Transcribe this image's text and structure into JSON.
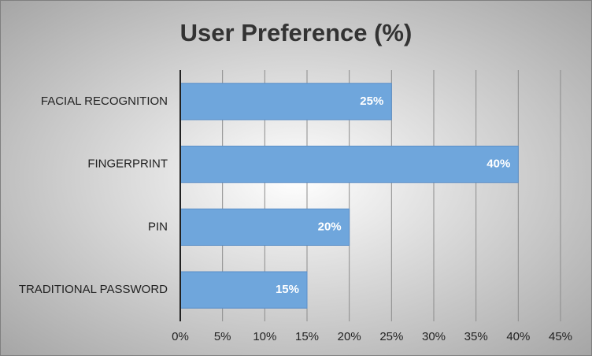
{
  "chart_data": {
    "type": "hbar",
    "title": "User Preference (%)",
    "categories": [
      "FACIAL RECOGNITION",
      "FINGERPRINT",
      "PIN",
      "TRADITIONAL PASSWORD"
    ],
    "values": [
      25,
      40,
      20,
      15
    ],
    "value_labels": [
      "25%",
      "40%",
      "20%",
      "15%"
    ],
    "color": "#6fa6dc",
    "xlim": [
      0,
      45
    ],
    "xticks": [
      {
        "value": 0,
        "label": "0%"
      },
      {
        "value": 5,
        "label": "5%"
      },
      {
        "value": 10,
        "label": "10%"
      },
      {
        "value": 15,
        "label": "15%"
      },
      {
        "value": 20,
        "label": "20%"
      },
      {
        "value": 25,
        "label": "25%"
      },
      {
        "value": 30,
        "label": "30%"
      },
      {
        "value": 35,
        "label": "35%"
      },
      {
        "value": 40,
        "label": "40%"
      },
      {
        "value": 45,
        "label": "45%"
      }
    ],
    "grid": true
  }
}
